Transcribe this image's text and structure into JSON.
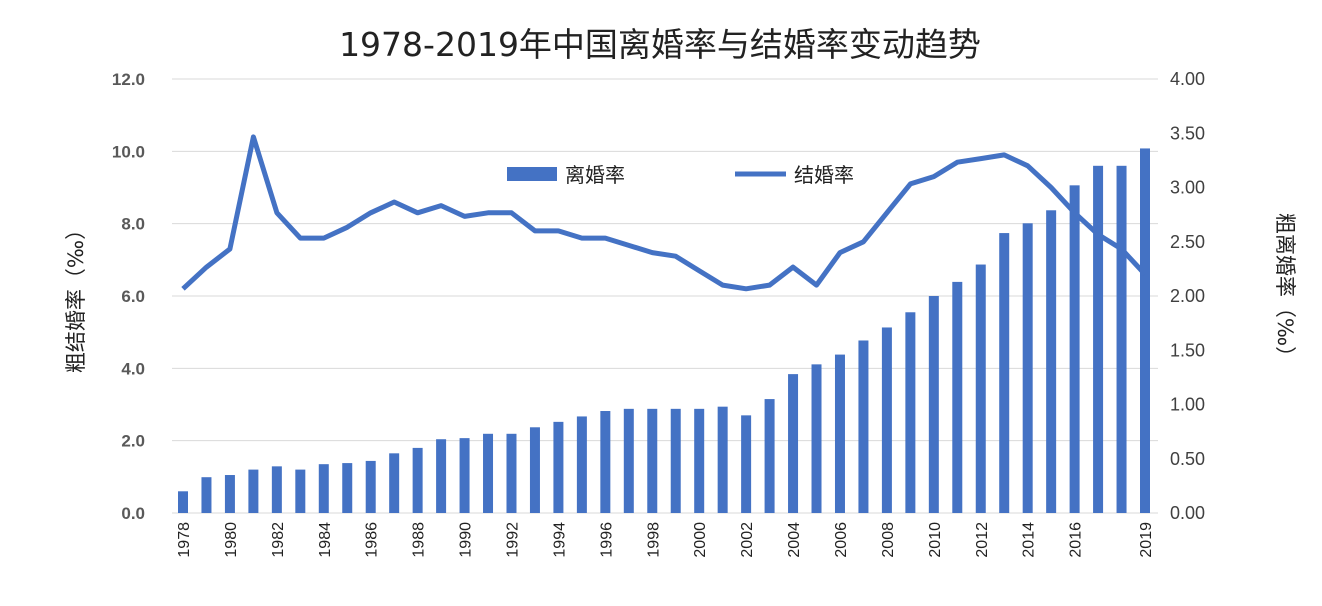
{
  "chart_data": {
    "type": "bar+line",
    "title": "1978-2019年中国离婚率与结婚率变动趋势",
    "ylabel_left": "粗结婚率（‰）",
    "ylabel_right": "粗离婚率（‰）",
    "ylim_left": [
      0,
      12
    ],
    "ylim_right": [
      0,
      4
    ],
    "yticks_left": [
      "0.0",
      "2.0",
      "4.0",
      "6.0",
      "8.0",
      "10.0",
      "12.0"
    ],
    "yticks_right": [
      "0.00",
      "0.50",
      "1.00",
      "1.50",
      "2.00",
      "2.50",
      "3.00",
      "3.50",
      "4.00"
    ],
    "grid": true,
    "legend_placement": "top-center",
    "color": "#4472C4",
    "x": [
      1978,
      1979,
      1980,
      1981,
      1982,
      1983,
      1984,
      1985,
      1986,
      1987,
      1988,
      1989,
      1990,
      1991,
      1992,
      1993,
      1994,
      1995,
      1996,
      1997,
      1998,
      1999,
      2000,
      2001,
      2002,
      2003,
      2004,
      2005,
      2006,
      2007,
      2008,
      2009,
      2010,
      2011,
      2012,
      2013,
      2014,
      2015,
      2016,
      2017,
      2018,
      2019
    ],
    "xtick_labels": [
      "1978",
      "1980",
      "1982",
      "1984",
      "1986",
      "1988",
      "1990",
      "1992",
      "1994",
      "1996",
      "1998",
      "2000",
      "2002",
      "2004",
      "2006",
      "2008",
      "2010",
      "2012",
      "2014",
      "2016",
      "2019"
    ],
    "series": [
      {
        "name": "离婚率",
        "type": "bar",
        "axis": "right",
        "values": [
          0.2,
          0.33,
          0.35,
          0.4,
          0.43,
          0.4,
          0.45,
          0.46,
          0.48,
          0.55,
          0.6,
          0.68,
          0.69,
          0.73,
          0.73,
          0.79,
          0.84,
          0.89,
          0.94,
          0.96,
          0.96,
          0.96,
          0.96,
          0.98,
          0.9,
          1.05,
          1.28,
          1.37,
          1.46,
          1.59,
          1.71,
          1.85,
          2.0,
          2.13,
          2.29,
          2.58,
          2.67,
          2.79,
          3.02,
          3.2,
          3.2,
          3.36
        ]
      },
      {
        "name": "结婚率",
        "type": "line",
        "axis": "left",
        "values": [
          6.2,
          6.8,
          7.3,
          10.4,
          8.3,
          7.6,
          7.6,
          7.9,
          8.3,
          8.6,
          8.3,
          8.5,
          8.2,
          8.3,
          8.3,
          7.8,
          7.8,
          7.6,
          7.6,
          7.4,
          7.2,
          7.1,
          6.7,
          6.3,
          6.2,
          6.3,
          6.8,
          6.3,
          7.2,
          7.5,
          8.3,
          9.1,
          9.3,
          9.7,
          9.8,
          9.9,
          9.6,
          9.0,
          8.3,
          7.7,
          7.3,
          6.6
        ]
      }
    ]
  }
}
